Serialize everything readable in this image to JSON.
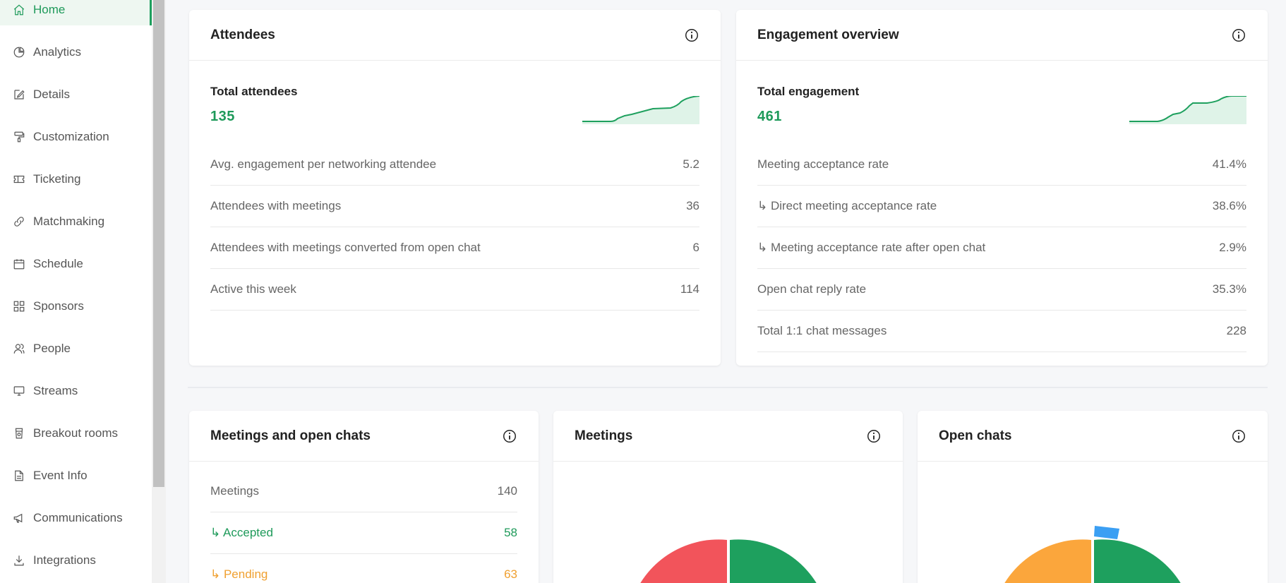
{
  "sidebar": {
    "items": [
      {
        "label": "Home",
        "icon": "home-icon"
      },
      {
        "label": "Analytics",
        "icon": "pie-chart-icon"
      },
      {
        "label": "Details",
        "icon": "edit-icon"
      },
      {
        "label": "Customization",
        "icon": "paint-roller-icon"
      },
      {
        "label": "Ticketing",
        "icon": "ticket-icon"
      },
      {
        "label": "Matchmaking",
        "icon": "link-icon"
      },
      {
        "label": "Schedule",
        "icon": "calendar-icon"
      },
      {
        "label": "Sponsors",
        "icon": "grid-icon"
      },
      {
        "label": "People",
        "icon": "people-icon"
      },
      {
        "label": "Streams",
        "icon": "monitor-icon"
      },
      {
        "label": "Breakout rooms",
        "icon": "cup-icon"
      },
      {
        "label": "Event Info",
        "icon": "document-icon"
      },
      {
        "label": "Communications",
        "icon": "megaphone-icon"
      },
      {
        "label": "Integrations",
        "icon": "download-icon"
      }
    ]
  },
  "attendees": {
    "title": "Attendees",
    "total_label": "Total attendees",
    "total_value": "135",
    "rows": [
      {
        "label": "Avg. engagement per networking attendee",
        "value": "5.2"
      },
      {
        "label": "Attendees with meetings",
        "value": "36"
      },
      {
        "label": "Attendees with meetings converted from open chat",
        "value": "6"
      },
      {
        "label": "Active this week",
        "value": "114"
      }
    ]
  },
  "engagement": {
    "title": "Engagement overview",
    "total_label": "Total engagement",
    "total_value": "461",
    "rows": [
      {
        "label": "Meeting acceptance rate",
        "value": "41.4%"
      },
      {
        "label": "↳ Direct meeting acceptance rate",
        "value": "38.6%"
      },
      {
        "label": "↳ Meeting acceptance rate after open chat",
        "value": "2.9%"
      },
      {
        "label": "Open chat reply rate",
        "value": "35.3%"
      },
      {
        "label": "Total 1:1 chat messages",
        "value": "228"
      }
    ]
  },
  "meetings_chats": {
    "title": "Meetings and open chats",
    "rows": [
      {
        "label": "Meetings",
        "value": "140"
      },
      {
        "label": "↳ Accepted",
        "value": "58"
      },
      {
        "label": "↳ Pending",
        "value": "63"
      }
    ]
  },
  "meetings": {
    "title": "Meetings"
  },
  "open_chats": {
    "title": "Open chats"
  },
  "colors": {
    "green": "#1e9a5a",
    "red": "#f2545b",
    "orange": "#fba63c",
    "blue": "#3b9ff3"
  }
}
